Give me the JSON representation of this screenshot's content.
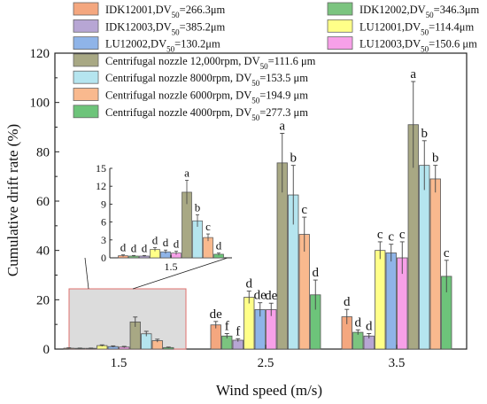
{
  "chart_data": {
    "type": "bar",
    "xlabel": "Wind speed (m/s)",
    "ylabel": "Cumulative drift rate (%)",
    "categories": [
      "1.5",
      "2.5",
      "3.5"
    ],
    "ylim": [
      0,
      120
    ],
    "yticks": [
      0,
      20,
      40,
      60,
      80,
      100,
      120
    ],
    "legend_position": "top",
    "series": [
      {
        "name": "IDK12001,DV50=266.3μm",
        "color": "#f4a77f",
        "values": [
          0.35,
          9.8,
          13.1
        ],
        "errors": [
          0.15,
          1.4,
          3.0
        ],
        "letters": [
          "d",
          "de",
          "d"
        ]
      },
      {
        "name": "IDK12002,DV50=346.3μm",
        "color": "#7bc47f",
        "values": [
          0.3,
          5.3,
          6.8
        ],
        "errors": [
          0.1,
          1.0,
          1.0
        ],
        "letters": [
          "d",
          "f",
          "d"
        ]
      },
      {
        "name": "IDK12003,DV50=385.2μm",
        "color": "#b7a6d4",
        "values": [
          0.3,
          3.6,
          5.3
        ],
        "errors": [
          0.1,
          0.6,
          1.0
        ],
        "letters": [
          "d",
          "f",
          "d"
        ]
      },
      {
        "name": "LU12001,DV50=114.4μm",
        "color": "#ffff88",
        "values": [
          1.4,
          21.0,
          40.0
        ],
        "errors": [
          0.3,
          2.5,
          3.5
        ],
        "letters": [
          "d",
          "d",
          "c"
        ]
      },
      {
        "name": "LU12002,DV50=130.2μm",
        "color": "#8fb4e8",
        "values": [
          1.0,
          16.0,
          39.0
        ],
        "errors": [
          0.3,
          2.8,
          3.5
        ],
        "letters": [
          "d",
          "de",
          "c"
        ]
      },
      {
        "name": "LU12003,DV50=150.6 μm",
        "color": "#f7a0e8",
        "values": [
          0.8,
          16.0,
          37.0
        ],
        "errors": [
          0.3,
          2.6,
          6.5
        ],
        "letters": [
          "d",
          "de",
          "c"
        ]
      },
      {
        "name": "Centrifugal nozzle 12,000rpm, DV50=111.6 μm",
        "color": "#a8a884",
        "values": [
          11.0,
          75.5,
          91.0
        ],
        "errors": [
          2.0,
          12.0,
          17.5
        ],
        "letters": [
          "a",
          "a",
          "a"
        ]
      },
      {
        "name": "Centrifugal nozzle 8000rpm, DV50=153.5 μm",
        "color": "#b5e5ef",
        "values": [
          6.2,
          62.5,
          74.5
        ],
        "errors": [
          1.0,
          12.0,
          10.0
        ],
        "letters": [
          "b",
          "b",
          "b"
        ]
      },
      {
        "name": "Centrifugal nozzle 6000rpm, DV50=194.9 μm",
        "color": "#f9b98e",
        "values": [
          3.4,
          46.5,
          69.0
        ],
        "errors": [
          0.6,
          7.0,
          5.5
        ],
        "letters": [
          "c",
          "c",
          "b"
        ]
      },
      {
        "name": "Centrifugal nozzle 4000rpm, DV50=277.3 μm",
        "color": "#6dc47a",
        "values": [
          0.6,
          22.0,
          29.5
        ],
        "errors": [
          0.2,
          6.0,
          6.5
        ],
        "letters": [
          "d",
          "d",
          "c"
        ]
      }
    ],
    "inset": {
      "category": "1.5",
      "ylim": [
        0,
        15
      ],
      "yticks": [
        0,
        3,
        6,
        9,
        12,
        15
      ]
    }
  }
}
